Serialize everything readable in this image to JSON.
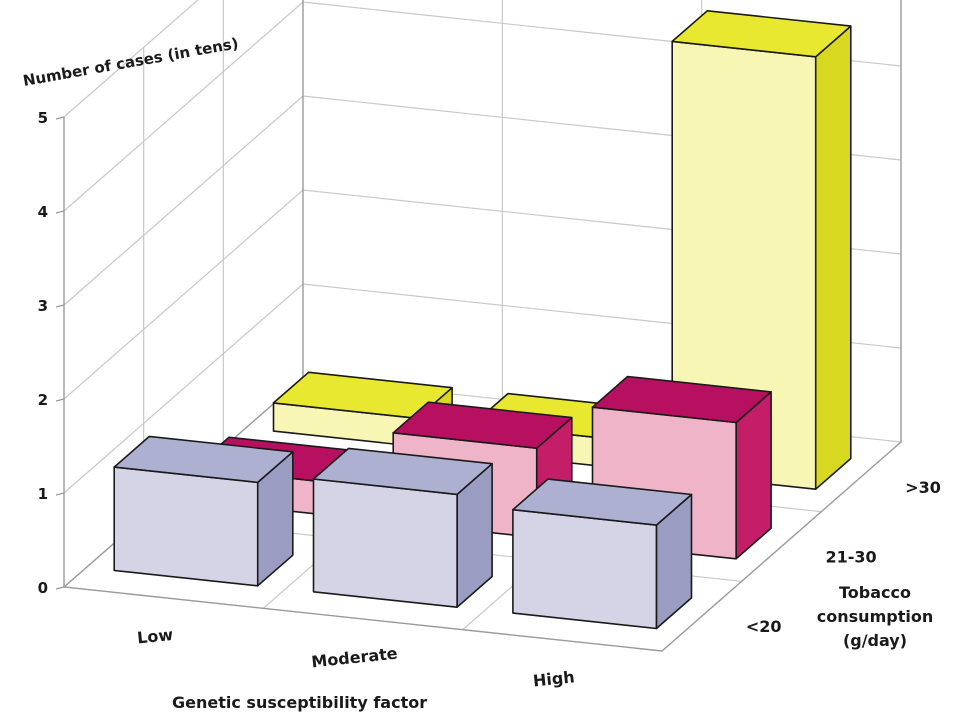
{
  "chart_data": {
    "type": "bar3d",
    "zlabel": "Number of cases (in tens)",
    "xlabel": "Genetic susceptibility factor",
    "ylabel_lines": [
      "Tobacco",
      "consumption",
      "(g/day)"
    ],
    "categories": [
      "Low",
      "Moderate",
      "High"
    ],
    "series_categories": [
      "<20",
      "21-30",
      ">30"
    ],
    "zticks": [
      "0",
      "1",
      "2",
      "3",
      "4",
      "5"
    ],
    "zlim": [
      0,
      5
    ],
    "grid": true,
    "series": [
      {
        "color_front": "#d4d4e6",
        "color_side": "#9a9cc2",
        "color_top": "#aeb0d2",
        "values": [
          1.1,
          1.2,
          1.1
        ]
      },
      {
        "color_front": "#f0b4c8",
        "color_side": "#c41e68",
        "color_top": "#b81060",
        "values": [
          0.35,
          0.95,
          1.45
        ]
      },
      {
        "color_front": "#f8f6b4",
        "color_side": "#d8d820",
        "color_top": "#e8e830",
        "values": [
          0.3,
          0.3,
          4.6
        ]
      }
    ]
  }
}
